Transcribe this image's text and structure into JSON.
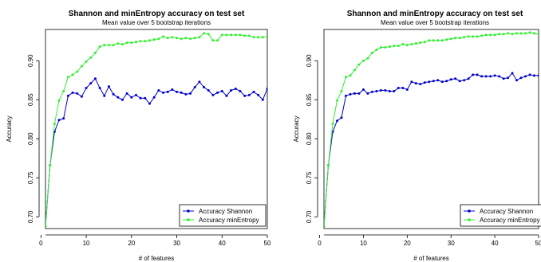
{
  "chart_data": [
    {
      "type": "line",
      "title": "Shannon and minEntropy accuracy on test set",
      "subtitle": "Mean value over 5 bootstrap iterations",
      "xlabel": "# of features",
      "ylabel": "Accuracy",
      "xlim": [
        1,
        50
      ],
      "ylim": [
        0.685,
        0.94
      ],
      "xticks": [
        "0",
        "10",
        "20",
        "30",
        "40",
        "50"
      ],
      "yticks": [
        "0.70",
        "0.75",
        "0.80",
        "0.85",
        "0.90"
      ],
      "legend_position": "bottom-right",
      "x": [
        1,
        2,
        3,
        4,
        5,
        6,
        7,
        8,
        9,
        10,
        11,
        12,
        13,
        14,
        15,
        16,
        17,
        18,
        19,
        20,
        21,
        22,
        23,
        24,
        25,
        26,
        27,
        28,
        29,
        30,
        31,
        32,
        33,
        34,
        35,
        36,
        37,
        38,
        39,
        40,
        41,
        42,
        43,
        44,
        45,
        46,
        47,
        48,
        49,
        50
      ],
      "series": [
        {
          "name": "Accuracy Shannon",
          "color": "#0000cc",
          "values": [
            0.688,
            0.766,
            0.809,
            0.824,
            0.826,
            0.855,
            0.859,
            0.858,
            0.854,
            0.865,
            0.871,
            0.877,
            0.865,
            0.855,
            0.867,
            0.857,
            0.853,
            0.85,
            0.858,
            0.853,
            0.856,
            0.852,
            0.852,
            0.845,
            0.853,
            0.862,
            0.859,
            0.86,
            0.863,
            0.86,
            0.859,
            0.857,
            0.858,
            0.866,
            0.873,
            0.866,
            0.862,
            0.856,
            0.859,
            0.861,
            0.855,
            0.862,
            0.864,
            0.861,
            0.855,
            0.856,
            0.86,
            0.856,
            0.85,
            0.864
          ]
        },
        {
          "name": "Accuracy minEntropy",
          "color": "#33ee33",
          "values": [
            0.688,
            0.766,
            0.819,
            0.849,
            0.861,
            0.879,
            0.882,
            0.886,
            0.893,
            0.899,
            0.904,
            0.91,
            0.918,
            0.92,
            0.92,
            0.92,
            0.922,
            0.921,
            0.923,
            0.923,
            0.924,
            0.925,
            0.925,
            0.926,
            0.927,
            0.928,
            0.931,
            0.929,
            0.93,
            0.929,
            0.928,
            0.929,
            0.928,
            0.929,
            0.93,
            0.935,
            0.934,
            0.926,
            0.926,
            0.933,
            0.933,
            0.933,
            0.933,
            0.933,
            0.932,
            0.932,
            0.93,
            0.93,
            0.93,
            0.931
          ]
        }
      ]
    },
    {
      "type": "line",
      "title": "Shannon and minEntropy accuracy on test set",
      "subtitle": "Mean value over 5 bootstrap iterations",
      "xlabel": "# of features",
      "ylabel": "Accuracy",
      "xlim": [
        1,
        50
      ],
      "ylim": [
        0.685,
        0.94
      ],
      "xticks": [
        "0",
        "10",
        "20",
        "30",
        "40",
        "50"
      ],
      "yticks": [
        "0.70",
        "0.75",
        "0.80",
        "0.85",
        "0.90"
      ],
      "legend_position": "bottom-right",
      "x": [
        1,
        2,
        3,
        4,
        5,
        6,
        7,
        8,
        9,
        10,
        11,
        12,
        13,
        14,
        15,
        16,
        17,
        18,
        19,
        20,
        21,
        22,
        23,
        24,
        25,
        26,
        27,
        28,
        29,
        30,
        31,
        32,
        33,
        34,
        35,
        36,
        37,
        38,
        39,
        40,
        41,
        42,
        43,
        44,
        45,
        46,
        47,
        48,
        49,
        50
      ],
      "series": [
        {
          "name": "Accuracy Shannon",
          "color": "#0000cc",
          "values": [
            0.688,
            0.766,
            0.809,
            0.823,
            0.827,
            0.855,
            0.857,
            0.858,
            0.858,
            0.863,
            0.858,
            0.86,
            0.861,
            0.862,
            0.862,
            0.861,
            0.861,
            0.865,
            0.865,
            0.863,
            0.873,
            0.871,
            0.87,
            0.872,
            0.873,
            0.874,
            0.875,
            0.873,
            0.874,
            0.876,
            0.877,
            0.874,
            0.875,
            0.877,
            0.882,
            0.882,
            0.88,
            0.88,
            0.88,
            0.881,
            0.88,
            0.877,
            0.878,
            0.884,
            0.875,
            0.878,
            0.88,
            0.882,
            0.881,
            0.881
          ]
        },
        {
          "name": "Accuracy minEntropy",
          "color": "#33ee33",
          "values": [
            0.688,
            0.766,
            0.819,
            0.849,
            0.861,
            0.879,
            0.881,
            0.888,
            0.895,
            0.9,
            0.903,
            0.91,
            0.914,
            0.917,
            0.917,
            0.918,
            0.919,
            0.919,
            0.921,
            0.92,
            0.921,
            0.922,
            0.923,
            0.924,
            0.926,
            0.926,
            0.926,
            0.926,
            0.927,
            0.928,
            0.929,
            0.929,
            0.93,
            0.931,
            0.931,
            0.931,
            0.932,
            0.933,
            0.933,
            0.933,
            0.934,
            0.934,
            0.935,
            0.934,
            0.935,
            0.935,
            0.935,
            0.936,
            0.935,
            0.934
          ]
        }
      ]
    }
  ]
}
